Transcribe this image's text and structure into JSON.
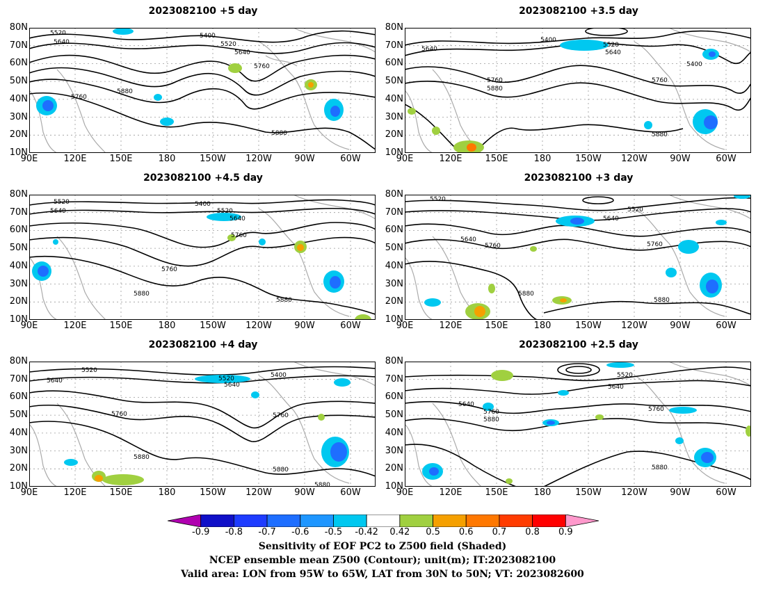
{
  "panels": [
    {
      "id": "p1",
      "title": "2023082100  +5 day"
    },
    {
      "id": "p2",
      "title": "2023082100  +3.5 day"
    },
    {
      "id": "p3",
      "title": "2023082100  +4.5 day"
    },
    {
      "id": "p4",
      "title": "2023082100  +3 day"
    },
    {
      "id": "p5",
      "title": "2023082100  +4 day"
    },
    {
      "id": "p6",
      "title": "2023082100  +2.5 day"
    }
  ],
  "lat_ticks": [
    "80N",
    "70N",
    "60N",
    "50N",
    "40N",
    "30N",
    "20N",
    "10N"
  ],
  "lon_ticks": [
    "90E",
    "120E",
    "150E",
    "180",
    "150W",
    "120W",
    "90W",
    "60W"
  ],
  "contour_levels": [
    "5400",
    "5520",
    "5640",
    "5760",
    "5880"
  ],
  "colorbar": {
    "labels": [
      "-0.9",
      "-0.8",
      "-0.7",
      "-0.6",
      "-0.5",
      "-0.42",
      "0.42",
      "0.5",
      "0.6",
      "0.7",
      "0.8",
      "0.9"
    ],
    "colors": [
      "#b000b0",
      "#1010c8",
      "#1e3cff",
      "#1e6eff",
      "#1e96ff",
      "#00c8f0",
      "#ffffff",
      "#a0d040",
      "#f5a000",
      "#ff7800",
      "#ff3c00",
      "#ff0000",
      "#ff99cc"
    ]
  },
  "captions": {
    "line1": "Sensitivity of EOF PC2 to Z500 field (Shaded)",
    "line2": "NCEP ensemble mean Z500 (Contour); unit(m); IT:2023082100",
    "line3": "Valid area: LON from 95W to 65W, LAT from 30N to 50N; VT: 2023082600"
  }
}
